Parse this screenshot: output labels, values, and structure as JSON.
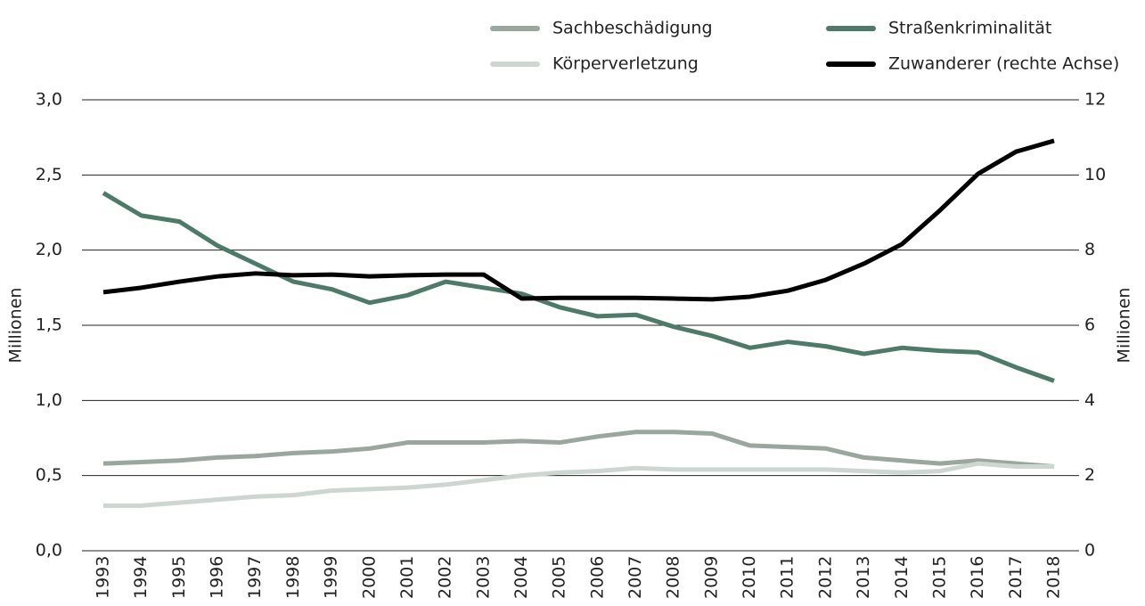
{
  "chart_data": {
    "type": "line",
    "categories": [
      "1993",
      "1994",
      "1995",
      "1996",
      "1997",
      "1998",
      "1999",
      "2000",
      "2001",
      "2002",
      "2003",
      "2004",
      "2005",
      "2006",
      "2007",
      "2008",
      "2009",
      "2010",
      "2011",
      "2012",
      "2013",
      "2014",
      "2015",
      "2016",
      "2017",
      "2018"
    ],
    "series": [
      {
        "name": "Sachbeschädigung",
        "color": "#9aa79e",
        "values": [
          0.58,
          0.59,
          0.6,
          0.62,
          0.63,
          0.65,
          0.66,
          0.68,
          0.72,
          0.72,
          0.72,
          0.73,
          0.72,
          0.76,
          0.79,
          0.79,
          0.78,
          0.7,
          0.69,
          0.68,
          0.62,
          0.6,
          0.58,
          0.6,
          0.58,
          0.56
        ]
      },
      {
        "name": "Straßenkriminalität",
        "color": "#4e7a69",
        "values": [
          2.38,
          2.23,
          2.19,
          2.03,
          1.91,
          1.79,
          1.74,
          1.65,
          1.7,
          1.79,
          1.75,
          1.71,
          1.62,
          1.56,
          1.57,
          1.49,
          1.43,
          1.35,
          1.39,
          1.36,
          1.31,
          1.35,
          1.33,
          1.32,
          1.22,
          1.13
        ]
      },
      {
        "name": "Körperverletzung",
        "color": "#cdd6d0",
        "values": [
          0.3,
          0.3,
          0.32,
          0.34,
          0.36,
          0.37,
          0.4,
          0.41,
          0.42,
          0.44,
          0.47,
          0.5,
          0.52,
          0.53,
          0.55,
          0.54,
          0.54,
          0.54,
          0.54,
          0.54,
          0.53,
          0.52,
          0.53,
          0.58,
          0.56,
          0.56
        ]
      },
      {
        "name": "Zuwanderer (rechte Achse)",
        "color": "#000000",
        "axis": "y2",
        "values": [
          6.88,
          7.0,
          7.16,
          7.3,
          7.38,
          7.33,
          7.35,
          7.3,
          7.33,
          7.35,
          7.35,
          6.71,
          6.73,
          6.73,
          6.73,
          6.71,
          6.69,
          6.76,
          6.92,
          7.21,
          7.64,
          8.16,
          9.06,
          10.03,
          10.62,
          10.91
        ]
      }
    ],
    "ylabel": "Millionen",
    "y2label": "Millionen",
    "ylim": [
      0,
      3
    ],
    "yticks": [
      {
        "value": 0,
        "label": "0,0"
      },
      {
        "value": 0.5,
        "label": "0,5"
      },
      {
        "value": 1,
        "label": "1,0"
      },
      {
        "value": 1.5,
        "label": "1,5"
      },
      {
        "value": 2,
        "label": "2,0"
      },
      {
        "value": 2.5,
        "label": "2,5"
      },
      {
        "value": 3,
        "label": "3,0"
      }
    ],
    "y2lim": [
      0,
      12
    ],
    "y2ticks": [
      0,
      2,
      4,
      6,
      8,
      10,
      12
    ],
    "grid": true
  }
}
